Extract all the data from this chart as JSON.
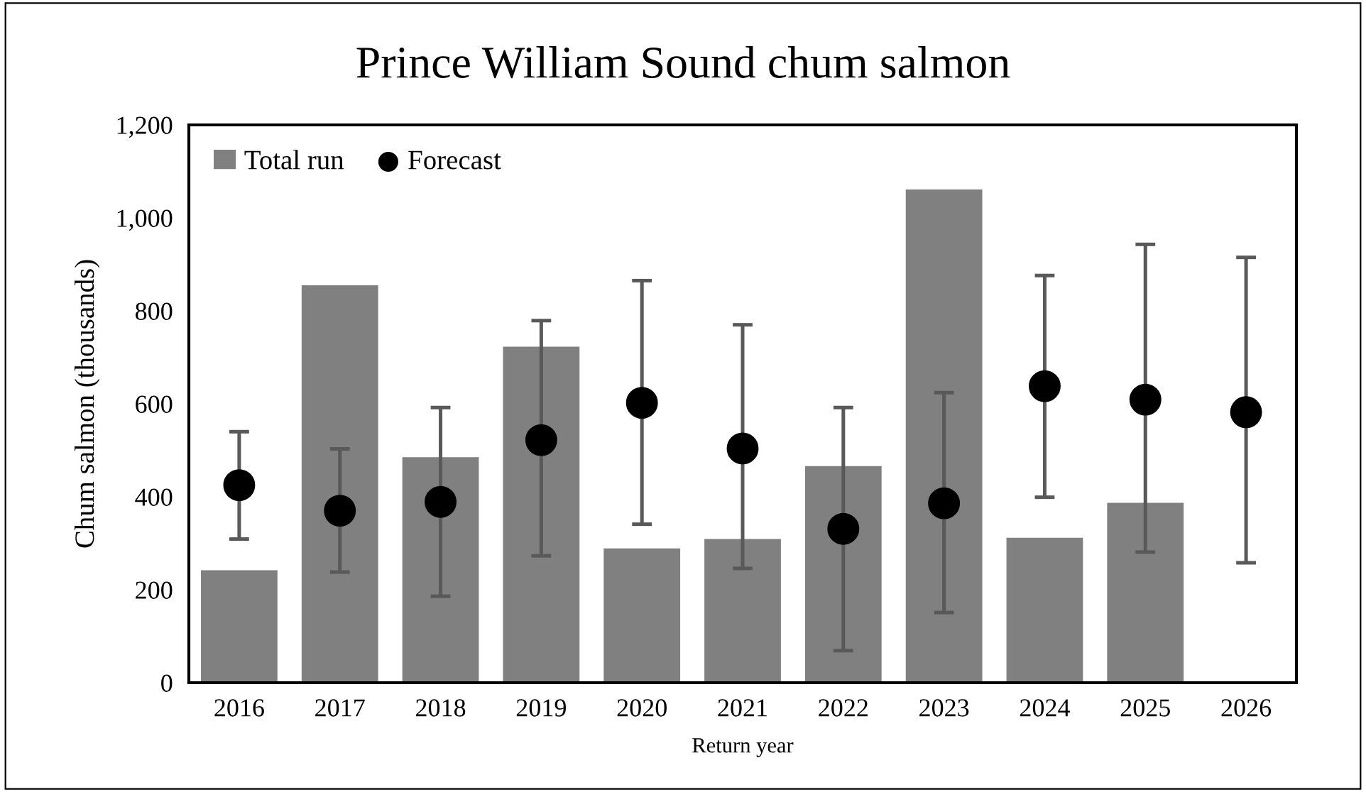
{
  "chart_data": {
    "type": "bar",
    "title": "Prince William Sound chum salmon",
    "xlabel": "Return year",
    "ylabel": "Chum salmon (thousands)",
    "categories": [
      "2016",
      "2017",
      "2018",
      "2019",
      "2020",
      "2021",
      "2022",
      "2023",
      "2024",
      "2025",
      "2026"
    ],
    "series": [
      {
        "name": "Total run",
        "color": "#808080",
        "values": [
          242,
          855,
          485,
          723,
          289,
          309,
          466,
          1061,
          312,
          387,
          null
        ]
      },
      {
        "name": "Forecast",
        "type": "scatter",
        "color": "#000000",
        "marker": "circle",
        "values": [
          425,
          370,
          389,
          522,
          602,
          504,
          331,
          386,
          638,
          609,
          582
        ],
        "errors": [
          [
            309,
            540
          ],
          [
            238,
            503
          ],
          [
            186,
            592
          ],
          [
            273,
            779
          ],
          [
            341,
            865
          ],
          [
            246,
            770
          ],
          [
            69,
            592
          ],
          [
            151,
            624
          ],
          [
            399,
            876
          ],
          [
            281,
            943
          ],
          [
            258,
            915
          ]
        ]
      }
    ],
    "ylim": [
      0,
      1200
    ],
    "yticks": [
      {
        "value": 0,
        "label": "0"
      },
      {
        "value": 200,
        "label": "200"
      },
      {
        "value": 400,
        "label": "400"
      },
      {
        "value": 600,
        "label": "600"
      },
      {
        "value": 800,
        "label": "800"
      },
      {
        "value": 1000,
        "label": "1,000"
      },
      {
        "value": 1200,
        "label": "1,200"
      }
    ],
    "grid": false,
    "legend": "top left"
  }
}
